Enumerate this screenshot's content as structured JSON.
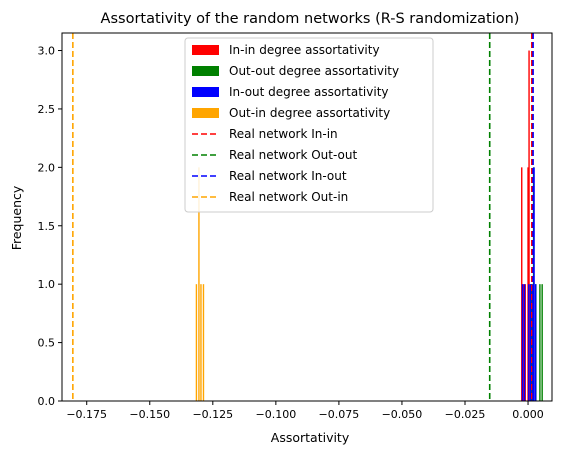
{
  "chart_data": {
    "type": "histogram",
    "title": "Assortativity of the random networks (R-S randomization)",
    "xlabel": "Assortativity",
    "ylabel": "Frequency",
    "xlim": [
      -0.1848,
      0.0095
    ],
    "ylim": [
      0,
      3.15
    ],
    "xticks": [
      -0.175,
      -0.15,
      -0.125,
      -0.1,
      -0.075,
      -0.05,
      -0.025,
      0.0
    ],
    "xtick_labels": [
      "−0.175",
      "−0.150",
      "−0.125",
      "−0.100",
      "−0.075",
      "−0.050",
      "−0.025",
      "0.000"
    ],
    "yticks": [
      0.0,
      0.5,
      1.0,
      1.5,
      2.0,
      2.5,
      3.0
    ],
    "ytick_labels": [
      "0.0",
      "0.5",
      "1.0",
      "1.5",
      "2.0",
      "2.5",
      "3.0"
    ],
    "legend_position": "top-center",
    "series": [
      {
        "name": "In-in degree assortativity",
        "kind": "hist",
        "color": "#ff0000",
        "bars": [
          [
            -0.0025,
            2
          ],
          [
            -0.0018,
            1
          ],
          [
            -0.0011,
            1
          ],
          [
            0.0,
            2
          ],
          [
            0.0004,
            3
          ],
          [
            0.0009,
            1
          ],
          [
            0.0014,
            1
          ]
        ]
      },
      {
        "name": "Out-out degree assortativity",
        "kind": "hist",
        "color": "#008000",
        "bars": [
          [
            0.0012,
            1
          ],
          [
            0.0022,
            2
          ],
          [
            0.0031,
            1
          ],
          [
            0.0047,
            1
          ],
          [
            0.0056,
            1
          ]
        ]
      },
      {
        "name": "In-out degree assortativity",
        "kind": "hist",
        "color": "#0000ff",
        "bars": [
          [
            -0.0022,
            1
          ],
          [
            -0.0014,
            1
          ],
          [
            0.0003,
            1
          ],
          [
            0.001,
            1
          ],
          [
            0.0018,
            1
          ],
          [
            0.0024,
            2
          ],
          [
            0.003,
            1
          ]
        ]
      },
      {
        "name": "Out-in degree assortativity",
        "kind": "hist",
        "color": "#ffa500",
        "bars": [
          [
            -0.1315,
            1
          ],
          [
            -0.1305,
            2
          ],
          [
            -0.1297,
            1
          ],
          [
            -0.1287,
            1
          ]
        ]
      },
      {
        "name": "Real network In-in",
        "kind": "vline",
        "color": "#ff0000",
        "x": 0.0015
      },
      {
        "name": "Real network Out-out",
        "kind": "vline",
        "color": "#008000",
        "x": -0.0152
      },
      {
        "name": "Real network In-out",
        "kind": "vline",
        "color": "#0000ff",
        "x": 0.002
      },
      {
        "name": "Real network Out-in",
        "kind": "vline",
        "color": "#ffa500",
        "x": -0.1805
      }
    ]
  }
}
